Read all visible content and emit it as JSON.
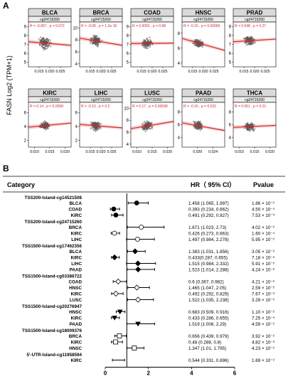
{
  "panel_a": {
    "letter": "A",
    "ylabel": "FASN Log2 (TPM+1)",
    "probe": "cg24715260",
    "line_color": "#d62728",
    "point_color": "#555555",
    "panels": [
      {
        "cancer": "BLCA",
        "stat": "R = -0.067 , p = 0.072",
        "yticks": [
          "5",
          "6",
          "7",
          "8",
          "9"
        ],
        "xticks": [
          "0.015",
          "0.020",
          "0.025"
        ],
        "trend": [
          7.3,
          6.9
        ],
        "ylim": [
          4.5,
          9.5
        ],
        "xlim": [
          0.01,
          0.03
        ],
        "cy": 7.1,
        "spread": 0.9
      },
      {
        "cancer": "BRCA",
        "stat": "R = -0.09 , p = 1.2e-10",
        "yticks": [
          "4",
          "6",
          "8",
          "10"
        ],
        "xticks": [
          "0.015",
          "0.020",
          "0.025"
        ],
        "trend": [
          8.3,
          7.1
        ],
        "ylim": [
          3.5,
          11
        ],
        "xlim": [
          0.01,
          0.03
        ],
        "cy": 7.7,
        "spread": 1.3
      },
      {
        "cancer": "COAD",
        "stat": "R = 0.0092 , p = 0.88",
        "yticks": [
          "5",
          "6",
          "7",
          "8",
          "9"
        ],
        "xticks": [
          "0.015",
          "0.020",
          "0.025"
        ],
        "trend": [
          7.1,
          7.15
        ],
        "ylim": [
          4.5,
          9.5
        ],
        "xlim": [
          0.01,
          0.03
        ],
        "cy": 7.1,
        "spread": 0.8
      },
      {
        "cancer": "HNSC",
        "stat": "R = -0.15 , p = 0.00065",
        "yticks": [
          "4",
          "6",
          "8"
        ],
        "xticks": [
          "0.015",
          "0.020",
          "0.025"
        ],
        "trend": [
          7.3,
          5.7
        ],
        "ylim": [
          3.5,
          9.5
        ],
        "xlim": [
          0.01,
          0.03
        ],
        "cy": 6.5,
        "spread": 0.8
      },
      {
        "cancer": "PRAD",
        "stat": "R = 0.048 , p = 0.27",
        "yticks": [
          "5",
          "6",
          "7",
          "8",
          "9"
        ],
        "xticks": [
          "0.015",
          "0.020",
          "0.025"
        ],
        "trend": [
          7.3,
          7.6
        ],
        "ylim": [
          4.5,
          9.5
        ],
        "xlim": [
          0.01,
          0.03
        ],
        "cy": 7.4,
        "spread": 0.8
      },
      {
        "cancer": "KIRC",
        "stat": "R = 0.14 , p = 0.0098",
        "yticks": [
          "2",
          "4",
          "6"
        ],
        "xticks": [
          "0.010",
          "0.015",
          "0.020"
        ],
        "trend": [
          3.9,
          4.5
        ],
        "ylim": [
          1,
          7.5
        ],
        "xlim": [
          0.008,
          0.022
        ],
        "cy": 4.2,
        "spread": 0.9
      },
      {
        "cancer": "LIHC",
        "stat": "R = -0.13 , p = 0.2",
        "yticks": [
          "2",
          "4",
          "6"
        ],
        "xticks": [
          "0.015",
          "0.020",
          "0.025"
        ],
        "trend": [
          4.3,
          3.8
        ],
        "ylim": [
          1,
          7.5
        ],
        "xlim": [
          0.01,
          0.03
        ],
        "cy": 4.1,
        "spread": 1.0
      },
      {
        "cancer": "LUSC",
        "stat": "R = 0.17 , p = 0.00098",
        "yticks": [
          "4",
          "6",
          "8",
          "10"
        ],
        "xticks": [
          "0.010",
          "0.015",
          "0.020"
        ],
        "trend": [
          6.6,
          7.8
        ],
        "ylim": [
          3.5,
          11
        ],
        "xlim": [
          0.008,
          0.022
        ],
        "cy": 7.2,
        "spread": 1.2
      },
      {
        "cancer": "PAAD",
        "stat": "R = -0.16 , p = 0.032",
        "yticks": [
          "4",
          "6",
          "8"
        ],
        "xticks": [
          "0.020",
          "0.024"
        ],
        "trend": [
          6.3,
          5.1
        ],
        "ylim": [
          2.5,
          9.5
        ],
        "xlim": [
          0.016,
          0.027
        ],
        "cy": 5.7,
        "spread": 1.0
      },
      {
        "cancer": "THCA",
        "stat": "R = 0.051 , p = 0.21",
        "yticks": [
          "4",
          "6",
          "8"
        ],
        "xticks": [
          "0.010",
          "0.015",
          "0.020"
        ],
        "trend": [
          5.6,
          5.9
        ],
        "ylim": [
          2.5,
          9.5
        ],
        "xlim": [
          0.008,
          0.022
        ],
        "cy": 5.75,
        "spread": 0.9
      }
    ]
  },
  "panel_b": {
    "letter": "B",
    "header": {
      "category": "Category",
      "hr": "HR（ 95% CI）",
      "pvalue": "Pvalue"
    },
    "axis": {
      "ticks": [
        "0",
        "2",
        "4",
        "6"
      ],
      "min": 0,
      "max": 6,
      "ref_line": 1
    },
    "groups": [
      {
        "title": "TSS200-Island-cg14521508",
        "marker": "circle",
        "fill": "#000000",
        "rows": [
          {
            "label": "BLCA",
            "hr": 1.458,
            "lo": 1.065,
            "hi": 1.997,
            "hr_text": "1.458 (1.065, 1.997)",
            "p_text": "1.86 × 10⁻²"
          },
          {
            "label": "COAD",
            "hr": 0.393,
            "lo": 0.234,
            "hi": 0.662,
            "hr_text": "0.393 (0.234, 0.662)",
            "p_text": "4.50 × 10⁻⁴"
          },
          {
            "label": "KIRC",
            "hr": 0.491,
            "lo": 0.292,
            "hi": 0.827,
            "hr_text": "0.491 (0.292, 0.827)",
            "p_text": "7.53 × 10⁻³"
          }
        ]
      },
      {
        "title": "TSS200-Island-cg24715260",
        "marker": "circle",
        "fill": "#ffffff",
        "rows": [
          {
            "label": "BRCA",
            "hr": 1.671,
            "lo": 1.023,
            "hi": 2.73,
            "hr_text": "1.671 (1.023, 2.73)",
            "p_text": "4.02 × 10⁻²"
          },
          {
            "label": "KIRC",
            "hr": 0.426,
            "lo": 0.273,
            "hi": 0.663,
            "hr_text": "0.426 (0.273, 0.663)",
            "p_text": "1.60 × 10⁻⁴"
          },
          {
            "label": "LIHC",
            "hr": 1.497,
            "lo": 0.984,
            "hi": 2.278,
            "hr_text": "1.497 (0.984, 2.278)",
            "p_text": "5.95 × 10⁻²"
          }
        ]
      },
      {
        "title": "TSS1500-Island-cg17462356",
        "marker": "diamond",
        "fill": "#000000",
        "rows": [
          {
            "label": "BLCA",
            "hr": 1.383,
            "lo": 1.031,
            "hi": 1.856,
            "hr_text": "1.383 (1.031, 1.856)",
            "p_text": "3.05 × 10⁻²"
          },
          {
            "label": "KIRC",
            "hr": 0.433,
            "lo": 0.287,
            "hi": 0.655,
            "hr_text": "0.433(0.287, 0.655)",
            "p_text": "7.18 × 10⁻⁵"
          },
          {
            "label": "LIHC",
            "hr": 1.515,
            "lo": 0.984,
            "hi": 2.332,
            "hr_text": "1.515 (0.984, 2.332)",
            "p_text": "5.91 × 10⁻²"
          },
          {
            "label": "PAAD",
            "hr": 1.523,
            "lo": 1.014,
            "hi": 2.288,
            "hr_text": "1.523 (1.014, 2.288)",
            "p_text": "4.24 × 10⁻²"
          }
        ]
      },
      {
        "title": "TSS1500-Island-cg03386722",
        "marker": "diamond",
        "fill": "#ffffff",
        "rows": [
          {
            "label": "COAD",
            "hr": 0.6,
            "lo": 0.367,
            "hi": 0.982,
            "hr_text": "0.6 (0.367, 0.982)",
            "p_text": "4.21 × 10⁻²"
          },
          {
            "label": "HNSC",
            "hr": 1.465,
            "lo": 1.047,
            "hi": 2.05,
            "hr_text": "1.465 (1.047, 2.05)",
            "p_text": "2.59 × 10⁻²"
          },
          {
            "label": "KIRC",
            "hr": 0.492,
            "lo": 0.292,
            "hi": 0.829,
            "hr_text": "0.492 (0.292, 0.829)",
            "p_text": "7.67 × 10⁻³"
          },
          {
            "label": "LUSC",
            "hr": 1.522,
            "lo": 1.035,
            "hi": 2.238,
            "hr_text": "1.522 (1.035, 2.238)",
            "p_text": "3.29 × 10⁻²"
          }
        ]
      },
      {
        "title": "TSS1500-Island-cg20276947",
        "marker": "triangle",
        "fill": "#000000",
        "rows": [
          {
            "label": "HNSC",
            "hr": 0.683,
            "lo": 0.509,
            "hi": 0.916,
            "hr_text": "0.683 (0.509, 0.916)",
            "p_text": "1.10 × 10⁻²"
          },
          {
            "label": "KIRC",
            "hr": 0.433,
            "lo": 0.286,
            "hi": 0.655,
            "hr_text": "0.433 (0.286, 0.655)",
            "p_text": "7.25 × 10⁻⁵"
          },
          {
            "label": "PAAD",
            "hr": 1.519,
            "lo": 1.008,
            "hi": 2.29,
            "hr_text": "1.519 (1.008, 2.29)",
            "p_text": "4.59 × 10⁻²"
          }
        ]
      },
      {
        "title": "TSS1500-Island-cg18009376",
        "marker": "square",
        "fill": "#ffffff",
        "rows": [
          {
            "label": "BRCA",
            "hr": 0.656,
            "lo": 0.439,
            "hi": 0.979,
            "hr_text": "0.656 (0.439, 0.979)",
            "p_text": "3.92 × 10⁻²"
          },
          {
            "label": "KIRC",
            "hr": 0.48,
            "lo": 0.288,
            "hi": 0.8,
            "hr_text": "0.48 (0.288, 0.8)",
            "p_text": "4.82 × 10⁻³"
          },
          {
            "label": "HNSC",
            "hr": 1.347,
            "lo": 1.01,
            "hi": 1.795,
            "hr_text": "1.347 (1.01, 1.795)",
            "p_text": "4.23 × 10⁻²"
          }
        ]
      },
      {
        "title": "5'-UTR-Island-cg11958594",
        "marker": "none",
        "fill": "#000000",
        "rows": [
          {
            "label": "KIRC",
            "hr": 0.544,
            "lo": 0.331,
            "hi": 0.896,
            "hr_text": "0.544 (0.331, 0.896)",
            "p_text": "1.69 × 10⁻²"
          }
        ]
      }
    ]
  }
}
